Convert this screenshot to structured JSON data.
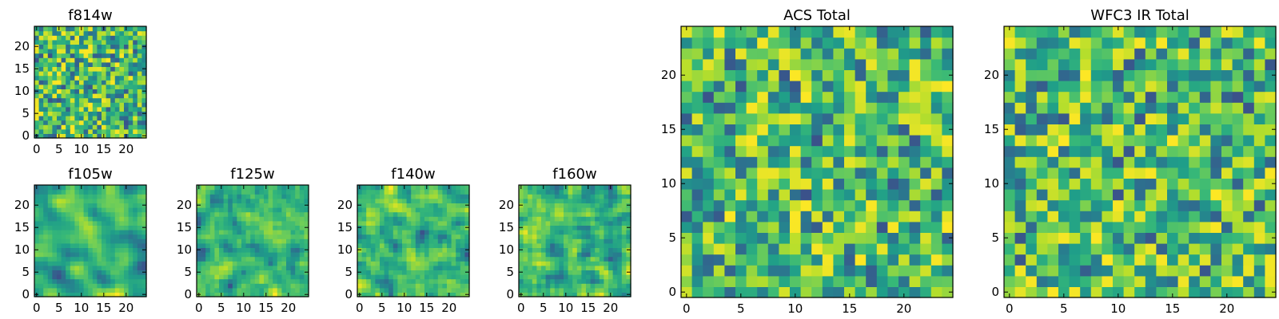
{
  "figure": {
    "background": "#ffffff",
    "colormap": "viridis",
    "note": ""
  },
  "chart_data": [
    {
      "type": "heatmap",
      "title": "f814w",
      "grid_size": 25,
      "xlim": [
        -0.5,
        24.5
      ],
      "ylim": [
        -0.5,
        24.5
      ],
      "xticks": [
        0,
        5,
        10,
        15,
        20
      ],
      "yticks": [
        0,
        5,
        10,
        15,
        20
      ],
      "xtick_labels": [
        "0",
        "5",
        "10",
        "15",
        "20"
      ],
      "ytick_labels": [
        "0",
        "5",
        "10",
        "15",
        "20"
      ],
      "noise_seed": 814,
      "noise_smoothness": 0,
      "value_range": [
        0,
        1
      ],
      "xlabel": "",
      "ylabel": ""
    },
    {
      "type": "heatmap",
      "title": "f105w",
      "grid_size": 25,
      "xlim": [
        -0.5,
        24.5
      ],
      "ylim": [
        -0.5,
        24.5
      ],
      "xticks": [
        0,
        5,
        10,
        15,
        20
      ],
      "yticks": [
        0,
        5,
        10,
        15,
        20
      ],
      "xtick_labels": [
        "0",
        "5",
        "10",
        "15",
        "20"
      ],
      "ytick_labels": [
        "0",
        "5",
        "10",
        "15",
        "20"
      ],
      "noise_seed": 105,
      "noise_smoothness": 2,
      "value_range": [
        0,
        1
      ],
      "xlabel": "",
      "ylabel": ""
    },
    {
      "type": "heatmap",
      "title": "f125w",
      "grid_size": 25,
      "xlim": [
        -0.5,
        24.5
      ],
      "ylim": [
        -0.5,
        24.5
      ],
      "xticks": [
        0,
        5,
        10,
        15,
        20
      ],
      "yticks": [
        0,
        5,
        10,
        15,
        20
      ],
      "xtick_labels": [
        "0",
        "5",
        "10",
        "15",
        "20"
      ],
      "ytick_labels": [
        "0",
        "5",
        "10",
        "15",
        "20"
      ],
      "noise_seed": 125,
      "noise_smoothness": 1,
      "value_range": [
        0,
        1
      ],
      "xlabel": "",
      "ylabel": ""
    },
    {
      "type": "heatmap",
      "title": "f140w",
      "grid_size": 25,
      "xlim": [
        -0.5,
        24.5
      ],
      "ylim": [
        -0.5,
        24.5
      ],
      "xticks": [
        0,
        5,
        10,
        15,
        20
      ],
      "yticks": [
        0,
        5,
        10,
        15,
        20
      ],
      "xtick_labels": [
        "0",
        "5",
        "10",
        "15",
        "20"
      ],
      "ytick_labels": [
        "0",
        "5",
        "10",
        "15",
        "20"
      ],
      "noise_seed": 140,
      "noise_smoothness": 1,
      "value_range": [
        0,
        1
      ],
      "xlabel": "",
      "ylabel": ""
    },
    {
      "type": "heatmap",
      "title": "f160w",
      "grid_size": 25,
      "xlim": [
        -0.5,
        24.5
      ],
      "ylim": [
        -0.5,
        24.5
      ],
      "xticks": [
        0,
        5,
        10,
        15,
        20
      ],
      "yticks": [
        0,
        5,
        10,
        15,
        20
      ],
      "xtick_labels": [
        "0",
        "5",
        "10",
        "15",
        "20"
      ],
      "ytick_labels": [
        "0",
        "5",
        "10",
        "15",
        "20"
      ],
      "noise_seed": 160,
      "noise_smoothness": 1,
      "value_range": [
        0,
        1
      ],
      "xlabel": "",
      "ylabel": ""
    },
    {
      "type": "heatmap",
      "title": "ACS Total",
      "grid_size": 25,
      "xlim": [
        -0.5,
        24.5
      ],
      "ylim": [
        -0.5,
        24.5
      ],
      "xticks": [
        0,
        5,
        10,
        15,
        20
      ],
      "yticks": [
        0,
        5,
        10,
        15,
        20
      ],
      "xtick_labels": [
        "0",
        "5",
        "10",
        "15",
        "20"
      ],
      "ytick_labels": [
        "0",
        "5",
        "10",
        "15",
        "20"
      ],
      "noise_seed": 9001,
      "noise_smoothness": 0,
      "value_range": [
        0,
        1
      ],
      "xlabel": "",
      "ylabel": ""
    },
    {
      "type": "heatmap",
      "title": "WFC3 IR Total",
      "grid_size": 25,
      "xlim": [
        -0.5,
        24.5
      ],
      "ylim": [
        -0.5,
        24.5
      ],
      "xticks": [
        0,
        5,
        10,
        15,
        20
      ],
      "yticks": [
        0,
        5,
        10,
        15,
        20
      ],
      "xtick_labels": [
        "0",
        "5",
        "10",
        "15",
        "20"
      ],
      "ytick_labels": [
        "0",
        "5",
        "10",
        "15",
        "20"
      ],
      "noise_seed": 9002,
      "noise_smoothness": 0,
      "value_range": [
        0,
        1
      ],
      "xlabel": "",
      "ylabel": ""
    }
  ]
}
